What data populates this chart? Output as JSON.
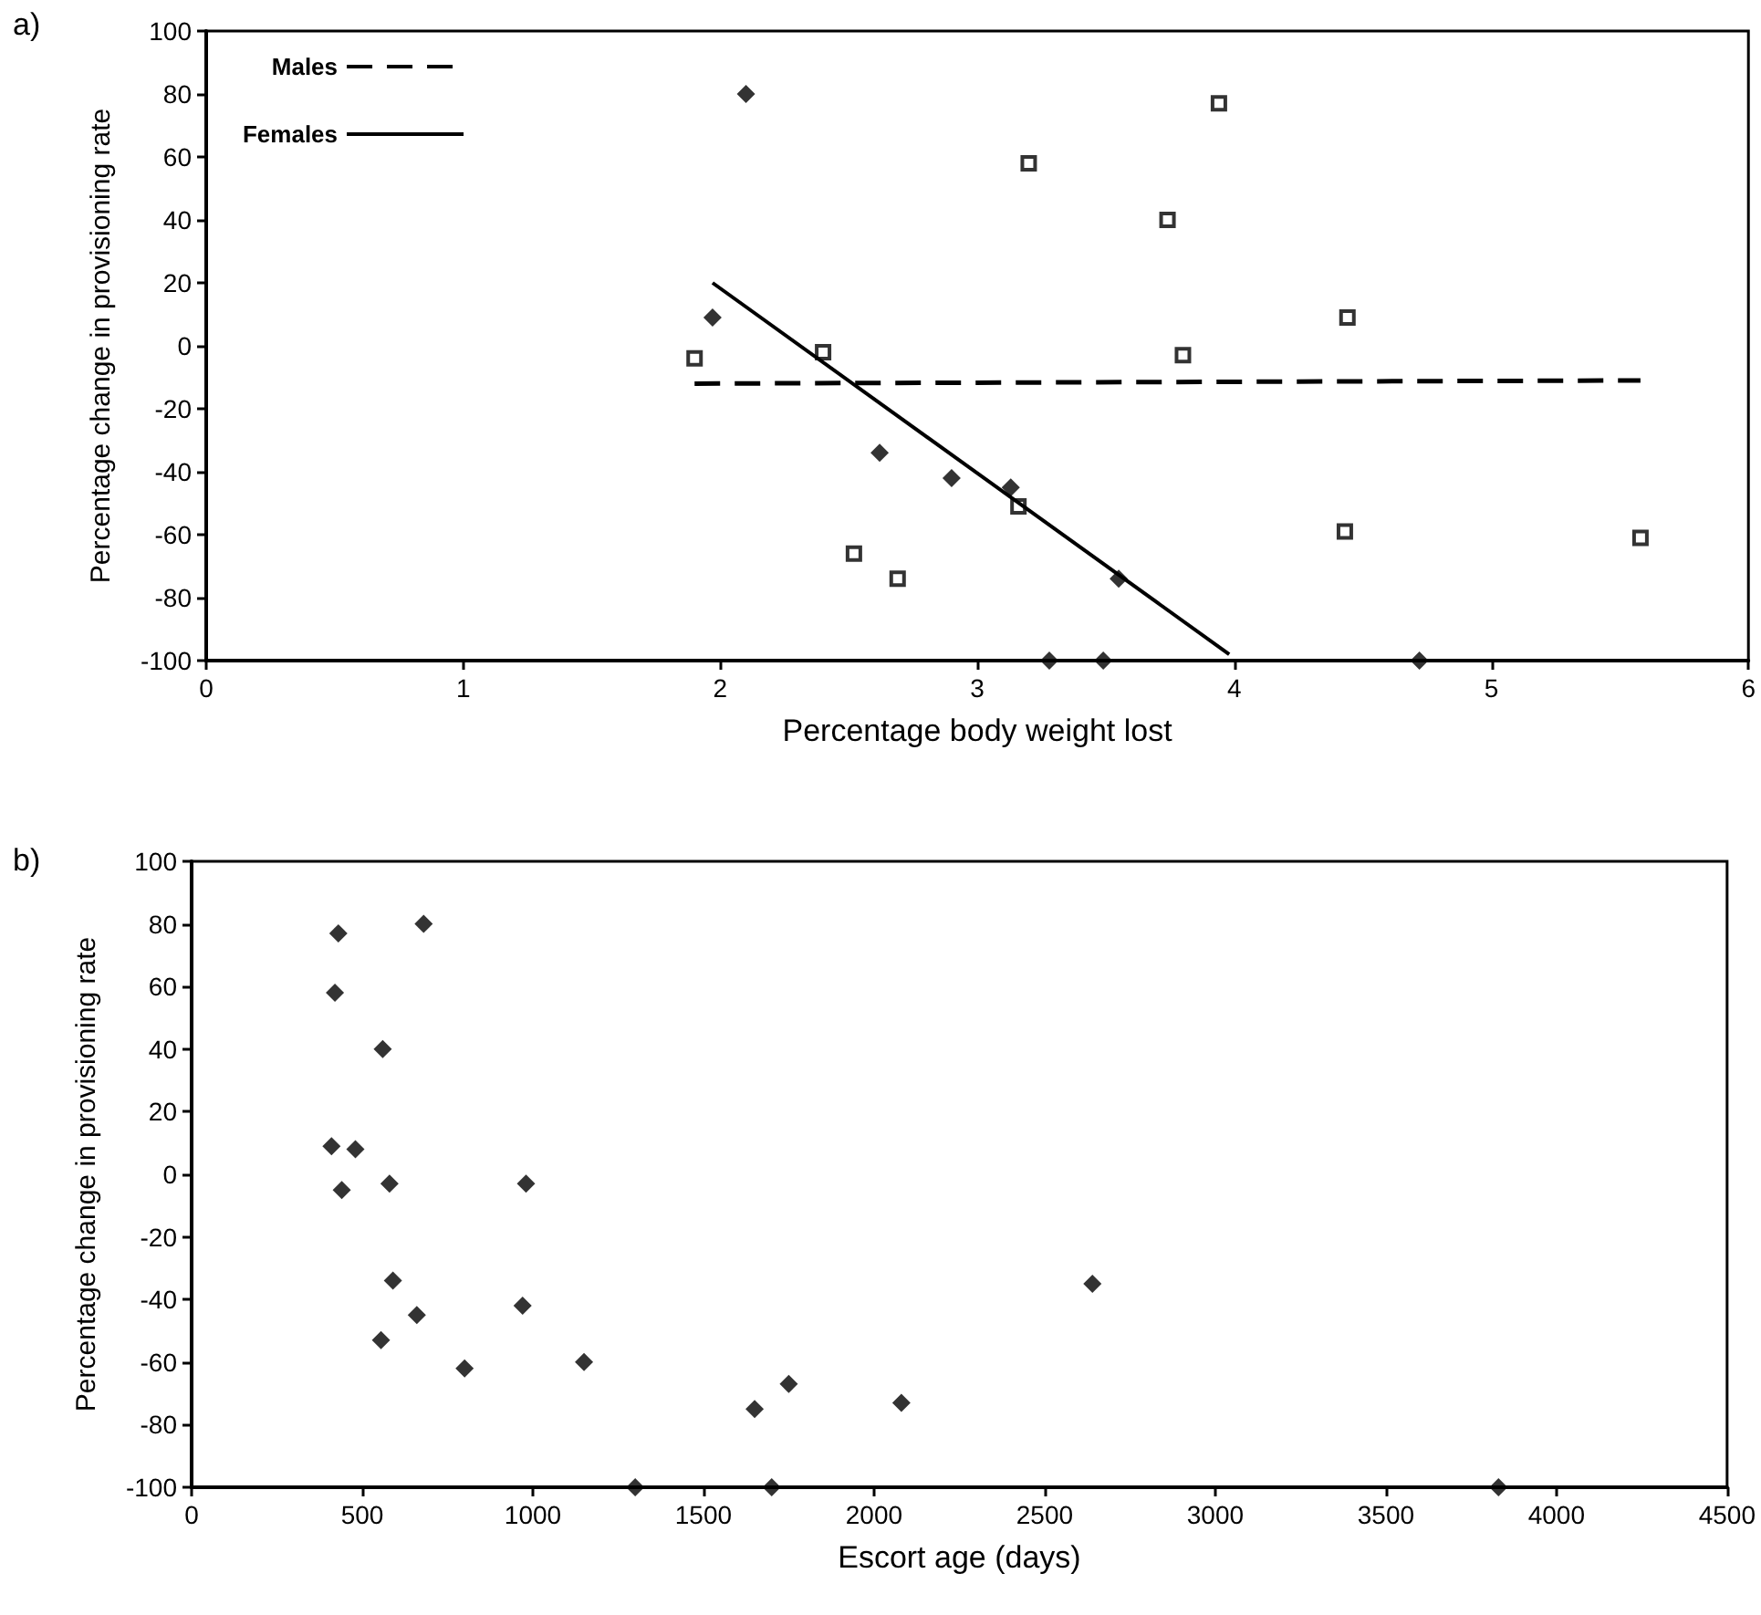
{
  "chart_data": [
    {
      "type": "scatter",
      "title": "a)",
      "xlabel": "Percentage body weight lost",
      "ylabel": "Percentage change in provisioning rate",
      "xlim": [
        0,
        6
      ],
      "xticks": [
        0,
        1,
        2,
        3,
        4,
        5,
        6
      ],
      "ylim": [
        -100,
        100
      ],
      "yticks": [
        -100,
        -80,
        -60,
        -40,
        -20,
        0,
        20,
        40,
        60,
        80,
        100
      ],
      "grid": false,
      "legend": "top left",
      "series": [
        {
          "marker": "square",
          "color": "#000000",
          "x": [
            1.9,
            2.4,
            3.2,
            3.74,
            3.94,
            3.8,
            4.44,
            2.52,
            2.69,
            3.16,
            4.43,
            5.58
          ],
          "values": [
            -4,
            -2,
            58,
            40,
            77,
            -3,
            9,
            -66,
            -74,
            -51,
            -59,
            -61
          ]
        },
        {
          "marker": "diamond",
          "color": "#000000",
          "x": [
            2.1,
            1.97,
            2.62,
            2.9,
            3.13,
            3.55,
            3.28,
            3.49,
            4.72
          ],
          "values": [
            80,
            9,
            -34,
            -42,
            -45,
            -74,
            -100,
            -100,
            -100
          ]
        },
        {
          "type": "line",
          "name": "Males",
          "line_style": "dashed",
          "marker": "none",
          "color": "#000000",
          "x": [
            1.9,
            5.58
          ],
          "values": [
            -12,
            -11
          ]
        },
        {
          "type": "line",
          "name": "Females",
          "line_style": "solid",
          "marker": "none",
          "color": "#000000",
          "x": [
            1.97,
            3.98
          ],
          "values": [
            20,
            -98
          ]
        }
      ]
    },
    {
      "type": "scatter",
      "title": "b)",
      "xlabel": "Escort age (days)",
      "ylabel": "Percentage change in provisioning rate",
      "xlim": [
        0,
        4500
      ],
      "xticks": [
        0,
        500,
        1000,
        1500,
        2000,
        2500,
        3000,
        3500,
        4000,
        4500
      ],
      "ylim": [
        -100,
        100
      ],
      "yticks": [
        -100,
        -80,
        -60,
        -40,
        -20,
        0,
        20,
        40,
        60,
        80,
        100
      ],
      "grid": false,
      "legend": false,
      "marker": "diamond",
      "series": [
        {
          "color": "#000000",
          "x": [
            430,
            420,
            680,
            560,
            410,
            480,
            440,
            580,
            980,
            590,
            660,
            555,
            970,
            800,
            1150,
            1650,
            1750,
            2080,
            2640,
            1300,
            1700,
            3830
          ],
          "values": [
            77,
            58,
            80,
            40,
            9,
            8,
            -5,
            -3,
            -3,
            -34,
            -45,
            -53,
            -42,
            -62,
            -60,
            -75,
            -67,
            -73,
            -35,
            -100,
            -100,
            -100
          ]
        }
      ]
    }
  ]
}
